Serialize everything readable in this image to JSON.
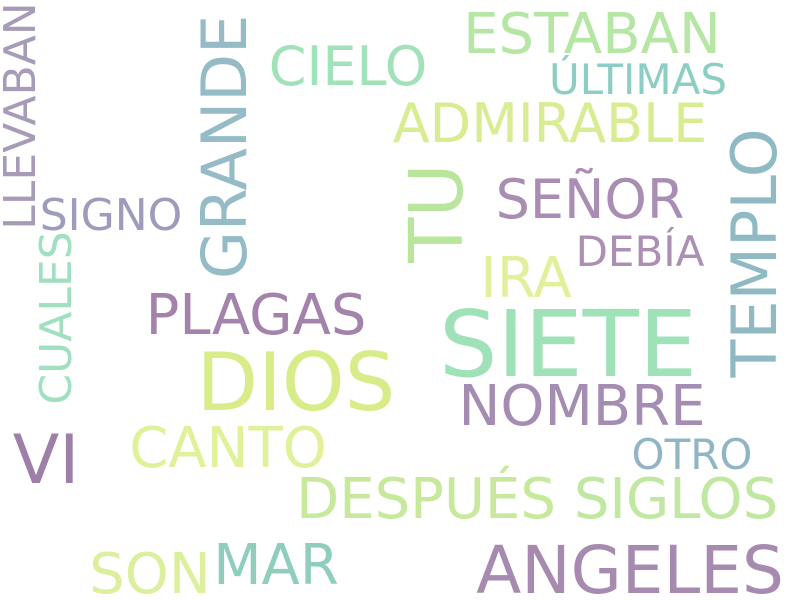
{
  "words": [
    {
      "text": "SIETE",
      "color": "#9fe2b8"
    },
    {
      "text": "DIOS",
      "color": "#d8ec8a"
    },
    {
      "text": "ANGELES",
      "color": "#a78ab0"
    },
    {
      "text": "TU",
      "color": "#b9e59d"
    },
    {
      "text": "TEMPLO",
      "color": "#8fb9c3"
    },
    {
      "text": "GRANDE",
      "color": "#95bcc6"
    },
    {
      "text": "PLAGAS",
      "color": "#a383ab"
    },
    {
      "text": "NOMBRE",
      "color": "#a58cb2"
    },
    {
      "text": "DESPUÉS",
      "color": "#c6e99c"
    },
    {
      "text": "SIGLOS",
      "color": "#c1e8a0"
    },
    {
      "text": "ADMIRABLE",
      "color": "#d8ed92"
    },
    {
      "text": "SEÑOR",
      "color": "#a98db3"
    },
    {
      "text": "CANTO",
      "color": "#dff199"
    },
    {
      "text": "ESTABAN",
      "color": "#b5e6a4"
    },
    {
      "text": "CIELO",
      "color": "#a2e2b9"
    },
    {
      "text": "VI",
      "color": "#9d7fa8"
    },
    {
      "text": "MAR",
      "color": "#8fcdbd"
    },
    {
      "text": "IRA",
      "color": "#e2f09b"
    },
    {
      "text": "SON",
      "color": "#dcef9c"
    },
    {
      "text": "LLEVABAN",
      "color": "#a79bb8"
    },
    {
      "text": "SIGNO",
      "color": "#9e9cbc"
    },
    {
      "text": "DEBÍA",
      "color": "#ac90b3"
    },
    {
      "text": "ÚLTIMAS",
      "color": "#8dcec4"
    },
    {
      "text": "CUALES",
      "color": "#9fe0c1"
    },
    {
      "text": "OTRO",
      "color": "#90b5c4"
    }
  ]
}
